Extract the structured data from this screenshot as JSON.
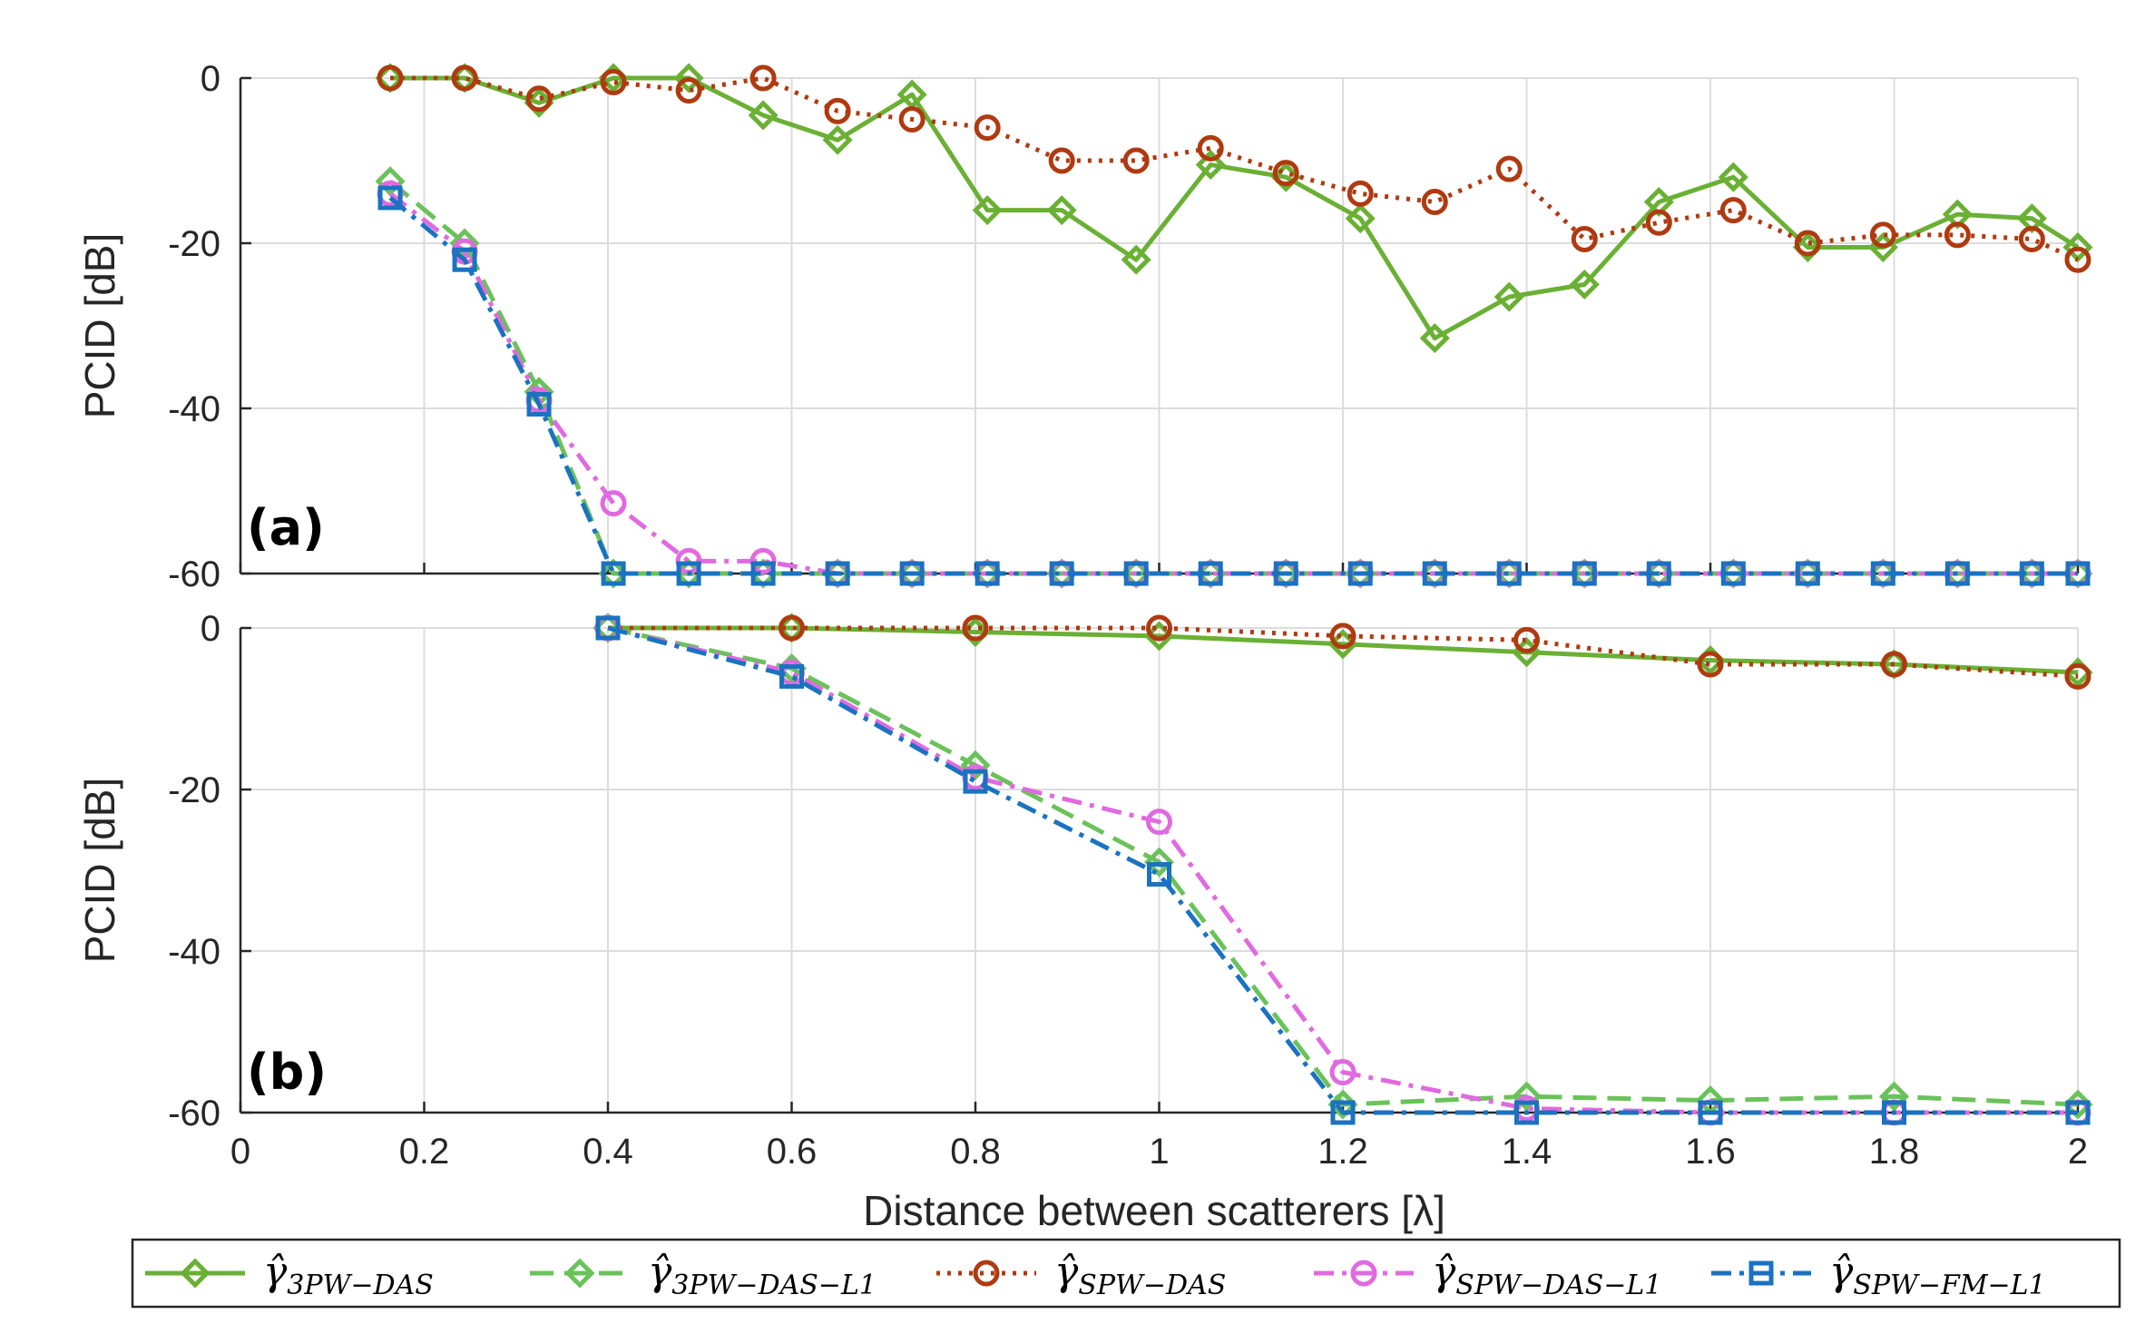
{
  "chart_data": [
    {
      "panel": "(a)",
      "type": "line",
      "ylabel": "PCID [dB]",
      "xlabel": "",
      "xlim": [
        0,
        2
      ],
      "ylim": [
        -60,
        0
      ],
      "xticks": [],
      "yticks": [
        "0",
        "-20",
        "-40",
        "-60"
      ],
      "grid": true,
      "series": [
        {
          "name": "γ̂3PW−DAS",
          "x": [
            0.163,
            0.244,
            0.325,
            0.406,
            0.488,
            0.569,
            0.65,
            0.731,
            0.813,
            0.894,
            0.975,
            1.056,
            1.138,
            1.219,
            1.3,
            1.381,
            1.463,
            1.544,
            1.625,
            1.706,
            1.788,
            1.869,
            1.95,
            2.0
          ],
          "y": [
            0,
            0,
            -3,
            0,
            0,
            -4.5,
            -7.5,
            -2,
            -16,
            -16,
            -22,
            -10.5,
            -12,
            -17,
            -31.5,
            -26.5,
            -25,
            -15,
            -12,
            -20.5,
            -20.5,
            -16.5,
            -17,
            -20.5
          ]
        },
        {
          "name": "γ̂3PW−DAS−L1",
          "x": [
            0.163,
            0.244,
            0.325,
            0.406,
            0.488,
            0.569,
            0.65,
            0.731,
            0.813,
            0.894,
            0.975,
            1.056,
            1.138,
            1.219,
            1.3,
            1.381,
            1.463,
            1.544,
            1.625,
            1.706,
            1.788,
            1.869,
            1.95,
            2.0
          ],
          "y": [
            -12.5,
            -20,
            -38,
            -60,
            -60,
            -60,
            -60,
            -60,
            -60,
            -60,
            -60,
            -60,
            -60,
            -60,
            -60,
            -60,
            -60,
            -60,
            -60,
            -60,
            -60,
            -60,
            -60,
            -60
          ]
        },
        {
          "name": "γ̂SPW−DAS",
          "x": [
            0.163,
            0.244,
            0.325,
            0.406,
            0.488,
            0.569,
            0.65,
            0.731,
            0.813,
            0.894,
            0.975,
            1.056,
            1.138,
            1.219,
            1.3,
            1.381,
            1.463,
            1.544,
            1.625,
            1.706,
            1.788,
            1.869,
            1.95,
            2.0
          ],
          "y": [
            0,
            0,
            -2.5,
            -0.5,
            -1.5,
            0,
            -4,
            -5,
            -6,
            -10,
            -10,
            -8.5,
            -11.5,
            -14,
            -15,
            -11,
            -19.5,
            -17.5,
            -16,
            -20,
            -19,
            -19,
            -19.5,
            -22
          ]
        },
        {
          "name": "γ̂SPW−DAS−L1",
          "x": [
            0.163,
            0.244,
            0.325,
            0.406,
            0.488,
            0.569,
            0.65,
            0.731,
            0.813,
            0.894,
            0.975,
            1.056,
            1.138,
            1.219,
            1.3,
            1.381,
            1.463,
            1.544,
            1.625,
            1.706,
            1.788,
            1.869,
            1.95,
            2.0
          ],
          "y": [
            -14,
            -21,
            -39,
            -51.5,
            -58.5,
            -58.5,
            -60,
            -60,
            -60,
            -60,
            -60,
            -60,
            -60,
            -60,
            -60,
            -60,
            -60,
            -60,
            -60,
            -60,
            -60,
            -60,
            -60,
            -60
          ]
        },
        {
          "name": "γ̂SPW−FM−L1",
          "x": [
            0.163,
            0.244,
            0.325,
            0.406,
            0.488,
            0.569,
            0.65,
            0.731,
            0.813,
            0.894,
            0.975,
            1.056,
            1.138,
            1.219,
            1.3,
            1.381,
            1.463,
            1.544,
            1.625,
            1.706,
            1.788,
            1.869,
            1.95,
            2.0
          ],
          "y": [
            -14.5,
            -22,
            -39.5,
            -60,
            -60,
            -60,
            -60,
            -60,
            -60,
            -60,
            -60,
            -60,
            -60,
            -60,
            -60,
            -60,
            -60,
            -60,
            -60,
            -60,
            -60,
            -60,
            -60,
            -60
          ]
        }
      ]
    },
    {
      "panel": "(b)",
      "type": "line",
      "ylabel": "PCID [dB]",
      "xlabel": "Distance between scatterers [λ]",
      "xlim": [
        0,
        2
      ],
      "ylim": [
        -60,
        0
      ],
      "xticks": [
        "0",
        "0.2",
        "0.4",
        "0.6",
        "0.8",
        "1",
        "1.2",
        "1.4",
        "1.6",
        "1.8",
        "2"
      ],
      "yticks": [
        "0",
        "-20",
        "-40",
        "-60"
      ],
      "grid": true,
      "series": [
        {
          "name": "γ̂3PW−DAS",
          "x": [
            0.4,
            0.6,
            0.8,
            1.0,
            1.2,
            1.4,
            1.6,
            1.8,
            2.0
          ],
          "y": [
            0,
            0,
            -0.5,
            -1,
            -2,
            -3,
            -4,
            -4.5,
            -5.5
          ]
        },
        {
          "name": "γ̂3PW−DAS−L1",
          "x": [
            0.4,
            0.6,
            0.8,
            1.0,
            1.2,
            1.4,
            1.6,
            1.8,
            2.0
          ],
          "y": [
            0,
            -5,
            -17,
            -29,
            -59,
            -58,
            -58.5,
            -58,
            -59
          ]
        },
        {
          "name": "γ̂SPW−DAS",
          "x": [
            0.4,
            0.6,
            0.8,
            1.0,
            1.2,
            1.4,
            1.6,
            1.8,
            2.0
          ],
          "y": [
            0,
            0,
            0,
            0,
            -1,
            -1.5,
            -4.5,
            -4.5,
            -6
          ]
        },
        {
          "name": "γ̂SPW−DAS−L1",
          "x": [
            0.4,
            0.6,
            0.8,
            1.0,
            1.2,
            1.4,
            1.6,
            1.8,
            2.0
          ],
          "y": [
            0,
            -5.5,
            -18.5,
            -24,
            -55,
            -59.5,
            -60,
            -60,
            -60
          ]
        },
        {
          "name": "γ̂SPW−FM−L1",
          "x": [
            0.4,
            0.6,
            0.8,
            1.0,
            1.2,
            1.4,
            1.6,
            1.8,
            2.0
          ],
          "y": [
            0,
            -6,
            -19,
            -30.5,
            -60,
            -60,
            -60,
            -60,
            -60
          ]
        }
      ]
    }
  ],
  "legend": {
    "position": "bottom",
    "entries": [
      {
        "label": "γ̂3PW−DAS",
        "base": "γ̂",
        "sub": "3PW−DAS",
        "color": "#6ab034",
        "dash": "solid",
        "marker": "diamond"
      },
      {
        "label": "γ̂3PW−DAS−L1",
        "base": "γ̂",
        "sub": "3PW−DAS−L1",
        "color": "#6ac25a",
        "dash": "dashed",
        "marker": "diamond"
      },
      {
        "label": "γ̂SPW−DAS",
        "base": "γ̂",
        "sub": "SPW−DAS",
        "color": "#b03a10",
        "dash": "dotted",
        "marker": "circle"
      },
      {
        "label": "γ̂SPW−DAS−L1",
        "base": "γ̂",
        "sub": "SPW−DAS−L1",
        "color": "#e06ae0",
        "dash": "dashdot",
        "marker": "circle"
      },
      {
        "label": "γ̂SPW−FM−L1",
        "base": "γ̂",
        "sub": "SPW−FM−L1",
        "color": "#1a72c0",
        "dash": "dashdot",
        "marker": "square"
      }
    ]
  }
}
